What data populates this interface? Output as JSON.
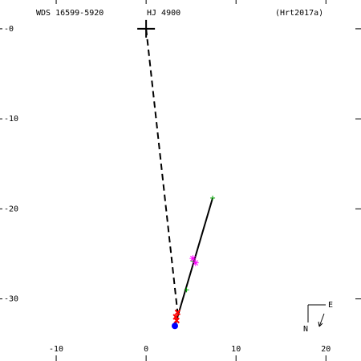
{
  "chart_data": {
    "type": "scatter",
    "title": "WDS 16599-5920",
    "subtitle": "HJ 4900",
    "reference": "(Hrt2017a)",
    "compass": {
      "east": "E",
      "north": "N"
    },
    "xlim": [
      -16.25,
      23.9
    ],
    "ylim": [
      -36.9,
      3.2
    ],
    "xticks": [
      -10,
      0,
      10,
      20
    ],
    "yticks": [
      {
        "value": 0,
        "label": "-0"
      },
      -10,
      -20,
      -30
    ],
    "series": [
      {
        "style": "dashed",
        "color": "#000000",
        "x": [
          0,
          3.5
        ],
        "y": [
          0,
          -31.5
        ]
      },
      {
        "style": "solid",
        "color": "#000000",
        "x": [
          3.2,
          7.4
        ],
        "y": [
          -33,
          -18.8
        ]
      },
      {
        "style": "big-plus",
        "color": "#000000",
        "x": [
          0
        ],
        "y": [
          0
        ]
      },
      {
        "style": "plus",
        "color": "#00a000",
        "x": [
          7.4,
          5.2,
          4.5
        ],
        "y": [
          -18.8,
          -25.8,
          -29
        ]
      },
      {
        "style": "star",
        "color": "#ff00ff",
        "x": [
          5.5,
          5.2
        ],
        "y": [
          -26,
          -25.5
        ]
      },
      {
        "style": "cross",
        "color": "#ff0000",
        "x": [
          3.5,
          3.3,
          3.4
        ],
        "y": [
          -31.5,
          -32,
          -32.4
        ]
      },
      {
        "style": "dot",
        "color": "#0000ff",
        "x": [
          3.2
        ],
        "y": [
          -33
        ]
      }
    ]
  }
}
